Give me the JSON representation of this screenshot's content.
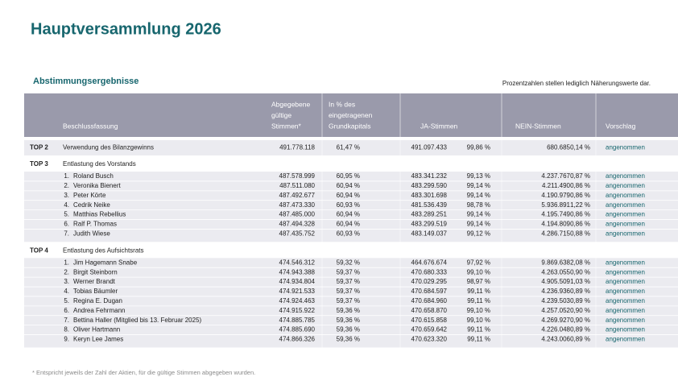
{
  "header": {
    "title": "Hauptversammlung 2026",
    "subtitle": "Abstimmungsergebnisse",
    "note": "Prozentzahlen stellen lediglich Näherungswerte dar."
  },
  "table": {
    "columns": [
      [
        "Beschlussfassung"
      ],
      [
        "Abgegebene",
        "gültige",
        "Stimmen*"
      ],
      [
        "In % des",
        "eingetragenen",
        "Grundkapitals"
      ],
      [
        "JA-Stimmen"
      ],
      [
        "NEIN-Stimmen"
      ],
      [
        "Vorschlag"
      ]
    ],
    "sections": [
      {
        "label": "TOP 2",
        "title": "Verwendung des Bilanzgewinns",
        "values": [
          "491.778.118",
          "61,47 %",
          "491.097.433",
          "99,86 %",
          "680.685",
          "0,14 %",
          "angenommen"
        ]
      },
      {
        "label": "TOP 3",
        "title": "Entlastung des Vorstands",
        "rows": [
          {
            "nr": "1.",
            "name": "Roland Busch",
            "values": [
              "487.578.999",
              "60,95 %",
              "483.341.232",
              "99,13 %",
              "4.237.767",
              "0,87 %",
              "angenommen"
            ]
          },
          {
            "nr": "2.",
            "name": "Veronika Bienert",
            "values": [
              "487.511.080",
              "60,94 %",
              "483.299.590",
              "99,14 %",
              "4.211.490",
              "0,86 %",
              "angenommen"
            ]
          },
          {
            "nr": "3.",
            "name": "Peter Körte",
            "values": [
              "487.492.677",
              "60,94 %",
              "483.301.698",
              "99,14 %",
              "4.190.979",
              "0,86 %",
              "angenommen"
            ]
          },
          {
            "nr": "4.",
            "name": "Cedrik Neike",
            "values": [
              "487.473.330",
              "60,93 %",
              "481.536.439",
              "98,78 %",
              "5.936.891",
              "1,22 %",
              "angenommen"
            ]
          },
          {
            "nr": "5.",
            "name": "Matthias Rebellius",
            "values": [
              "487.485.000",
              "60,94 %",
              "483.289.251",
              "99,14 %",
              "4.195.749",
              "0,86 %",
              "angenommen"
            ]
          },
          {
            "nr": "6.",
            "name": "Ralf P. Thomas",
            "values": [
              "487.494.328",
              "60,94 %",
              "483.299.519",
              "99,14 %",
              "4.194.809",
              "0,86 %",
              "angenommen"
            ]
          },
          {
            "nr": "7.",
            "name": "Judith Wiese",
            "values": [
              "487.435.752",
              "60,93 %",
              "483.149.037",
              "99,12 %",
              "4.286.715",
              "0,88 %",
              "angenommen"
            ]
          }
        ]
      },
      {
        "label": "TOP 4",
        "title": "Entlastung des Aufsichtsrats",
        "rows": [
          {
            "nr": "1.",
            "name": "Jim Hagemann Snabe",
            "values": [
              "474.546.312",
              "59,32 %",
              "464.676.674",
              "97,92 %",
              "9.869.638",
              "2,08 %",
              "angenommen"
            ]
          },
          {
            "nr": "2.",
            "name": "Birgit Steinborn",
            "values": [
              "474.943.388",
              "59,37 %",
              "470.680.333",
              "99,10 %",
              "4.263.055",
              "0,90 %",
              "angenommen"
            ]
          },
          {
            "nr": "3.",
            "name": "Werner Brandt",
            "values": [
              "474.934.804",
              "59,37 %",
              "470.029.295",
              "98,97 %",
              "4.905.509",
              "1,03 %",
              "angenommen"
            ]
          },
          {
            "nr": "4.",
            "name": "Tobias Bäumler",
            "values": [
              "474.921.533",
              "59,37 %",
              "470.684.597",
              "99,11 %",
              "4.236.936",
              "0,89 %",
              "angenommen"
            ]
          },
          {
            "nr": "5.",
            "name": "Regina E. Dugan",
            "values": [
              "474.924.463",
              "59,37 %",
              "470.684.960",
              "99,11 %",
              "4.239.503",
              "0,89 %",
              "angenommen"
            ]
          },
          {
            "nr": "6.",
            "name": "Andrea Fehrmann",
            "values": [
              "474.915.922",
              "59,36 %",
              "470.658.870",
              "99,10 %",
              "4.257.052",
              "0,90 %",
              "angenommen"
            ]
          },
          {
            "nr": "7.",
            "name": "Bettina Haller (Mitglied bis 13. Februar 2025)",
            "values": [
              "474.885.785",
              "59,36 %",
              "470.615.858",
              "99,10 %",
              "4.269.927",
              "0,90 %",
              "angenommen"
            ]
          },
          {
            "nr": "8.",
            "name": "Oliver Hartmann",
            "values": [
              "474.885.690",
              "59,36 %",
              "470.659.642",
              "99,11 %",
              "4.226.048",
              "0,89 %",
              "angenommen"
            ]
          },
          {
            "nr": "9.",
            "name": "Keryn Lee James",
            "values": [
              "474.866.326",
              "59,36 %",
              "470.623.320",
              "99,11 %",
              "4.243.006",
              "0,89 %",
              "angenommen"
            ]
          }
        ]
      }
    ]
  },
  "footnote": "* Entspricht jeweils der Zahl der Aktien, für die gültige Stimmen abgegeben wurden."
}
